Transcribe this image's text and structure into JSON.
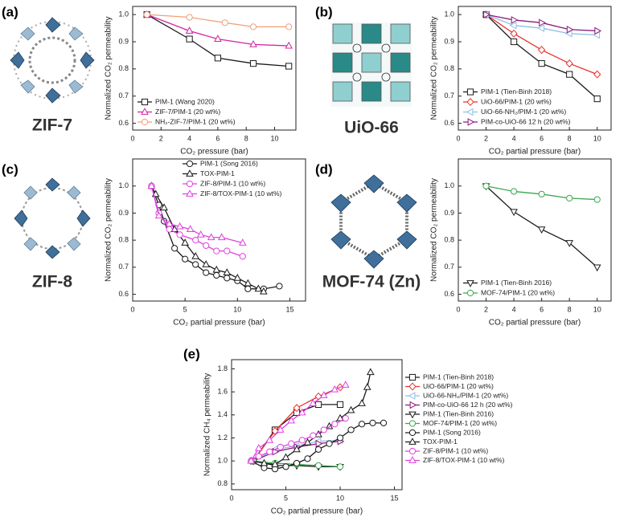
{
  "panels": [
    {
      "label": "(a)",
      "structure": "ZIF-7"
    },
    {
      "label": "(b)",
      "structure": "UiO-66"
    },
    {
      "label": "(c)",
      "structure": "ZIF-8"
    },
    {
      "label": "(d)",
      "structure": "MOF-74 (Zn)"
    },
    {
      "label": "(e)"
    }
  ],
  "chart_data": [
    {
      "type": "line",
      "xlabel": "CO₂ pressure (bar)",
      "ylabel": "Normalized CO₂ permeability",
      "xlim": [
        0,
        11.5
      ],
      "ylim": [
        0.575,
        1.03
      ],
      "xticks": [
        0,
        2,
        4,
        6,
        8,
        10
      ],
      "yticks": [
        0.6,
        0.7,
        0.8,
        0.9,
        {
          "value": 1,
          "label": "1.0"
        }
      ],
      "legend": "lower left",
      "series": [
        {
          "name": "PIM-1 (Wang 2020)",
          "color": "#1a1a1a",
          "marker": "square",
          "x": [
            1,
            4,
            6,
            8.5,
            11
          ],
          "values": [
            1.0,
            0.91,
            0.84,
            0.82,
            0.81
          ]
        },
        {
          "name": "ZIF-7/PIM-1 (20 wt%)",
          "color": "#d4249f",
          "marker": "triangle",
          "x": [
            1,
            4,
            6,
            8.5,
            11
          ],
          "values": [
            1.0,
            0.94,
            0.91,
            0.89,
            0.885
          ]
        },
        {
          "name": "NH₂-ZIF-7/PIM-1 (20 wt%)",
          "color": "#f0a07a",
          "marker": "circle",
          "x": [
            1,
            4,
            6.5,
            8.5,
            11
          ],
          "values": [
            1.0,
            0.99,
            0.97,
            0.955,
            0.955
          ]
        }
      ]
    },
    {
      "type": "line",
      "xlabel": "CO₂ partial pressure (bar)",
      "ylabel": "Normalized CO₂ permeability",
      "xlim": [
        0,
        11
      ],
      "ylim": [
        0.575,
        1.03
      ],
      "xticks": [
        0,
        2,
        4,
        6,
        8,
        10
      ],
      "yticks": [
        0.6,
        0.7,
        0.8,
        0.9,
        {
          "value": 1,
          "label": "1.0"
        }
      ],
      "legend": "lower left",
      "series": [
        {
          "name": "PIM-1 (Tien-Binh 2018)",
          "color": "#1a1a1a",
          "marker": "square",
          "x": [
            2,
            4,
            6,
            8,
            10
          ],
          "values": [
            1.0,
            0.9,
            0.82,
            0.78,
            0.69
          ]
        },
        {
          "name": "UiO-66/PIM-1 (20 wt%)",
          "color": "#e8312a",
          "marker": "diamond",
          "x": [
            2,
            4,
            6,
            8,
            10
          ],
          "values": [
            1.0,
            0.93,
            0.87,
            0.82,
            0.78
          ]
        },
        {
          "name": "UiO-66-NH₂/PIM-1 (20 wt%)",
          "color": "#8fbfe0",
          "marker": "triangle-left",
          "x": [
            2,
            4,
            6,
            8,
            10
          ],
          "values": [
            1.0,
            0.96,
            0.95,
            0.93,
            0.925
          ]
        },
        {
          "name": "PIM-co-UiO-66 12 h (20 wt%)",
          "color": "#8b1a7a",
          "marker": "triangle-right",
          "x": [
            2,
            4,
            6,
            8,
            10
          ],
          "values": [
            1.0,
            0.98,
            0.97,
            0.945,
            0.94
          ]
        }
      ]
    },
    {
      "type": "line",
      "xlabel": "CO₂ partial pressure (bar)",
      "ylabel": "Normalized CO₂ permeability",
      "xlim": [
        0,
        16.5
      ],
      "ylim": [
        0.575,
        1.1
      ],
      "xticks": [
        0,
        5,
        10,
        15
      ],
      "yticks": [
        0.6,
        0.7,
        0.8,
        0.9,
        {
          "value": 1,
          "label": "1.0"
        }
      ],
      "legend": "upper right",
      "series": [
        {
          "name": "PIM-1 (Song 2016)",
          "color": "#1a1a1a",
          "marker": "circle",
          "x": [
            1.8,
            2.5,
            3,
            4,
            5,
            6,
            7,
            8,
            9,
            10,
            11,
            12.5,
            14
          ],
          "values": [
            1.0,
            0.93,
            0.87,
            0.77,
            0.73,
            0.71,
            0.68,
            0.67,
            0.66,
            0.65,
            0.62,
            0.62,
            0.63
          ]
        },
        {
          "name": "TOX-PIM-1",
          "color": "#1a1a1a",
          "marker": "triangle",
          "x": [
            1.8,
            2.2,
            3,
            4,
            5,
            6,
            7,
            8,
            9,
            10,
            11,
            12,
            12.5
          ],
          "values": [
            1.0,
            0.97,
            0.92,
            0.84,
            0.79,
            0.74,
            0.71,
            0.69,
            0.68,
            0.66,
            0.64,
            0.62,
            0.61
          ]
        },
        {
          "name": "ZIF-8/PIM-1 (10 wt%)",
          "color": "#e040e0",
          "marker": "circle",
          "x": [
            1.8,
            2.5,
            3.5,
            4.5,
            6,
            7,
            8,
            9,
            10.5
          ],
          "values": [
            1.0,
            0.9,
            0.84,
            0.82,
            0.8,
            0.78,
            0.76,
            0.76,
            0.74
          ]
        },
        {
          "name": "ZIF-8/TOX-PIM-1 (10 wt%)",
          "color": "#e040e0",
          "marker": "triangle",
          "x": [
            1.8,
            2.5,
            3.5,
            4.5,
            5.5,
            6.5,
            7.5,
            8.5,
            10.5
          ],
          "values": [
            1.0,
            0.89,
            0.86,
            0.85,
            0.84,
            0.82,
            0.81,
            0.81,
            0.79
          ]
        }
      ]
    },
    {
      "type": "line",
      "xlabel": "CO₂ partial pressure (bar)",
      "ylabel": "Normalized CO₂ permeability",
      "xlim": [
        0,
        11
      ],
      "ylim": [
        0.575,
        1.1
      ],
      "xticks": [
        0,
        2,
        4,
        6,
        8,
        10
      ],
      "yticks": [
        0.6,
        0.7,
        0.8,
        0.9,
        {
          "value": 1,
          "label": "1.0"
        }
      ],
      "legend": "lower left",
      "series": [
        {
          "name": "PIM-1 (Tien-Binh 2016)",
          "color": "#1a1a1a",
          "marker": "triangle-down",
          "x": [
            2,
            4,
            6,
            8,
            10
          ],
          "values": [
            1.0,
            0.905,
            0.84,
            0.79,
            0.7
          ]
        },
        {
          "name": "MOF-74/PIM-1 (20 wt%)",
          "color": "#3aa64f",
          "marker": "circle",
          "x": [
            2,
            4,
            6,
            8,
            10
          ],
          "values": [
            1.0,
            0.98,
            0.97,
            0.955,
            0.95
          ]
        }
      ]
    },
    {
      "type": "line",
      "xlabel": "CO₂ partial pressure (bar)",
      "ylabel": "Normalized CH₄ permeability",
      "xlim": [
        0,
        15.7
      ],
      "ylim": [
        0.75,
        1.88
      ],
      "xticks": [
        0,
        5,
        10,
        15
      ],
      "yticks": [
        0.8,
        {
          "value": 1,
          "label": "1.0"
        },
        1.2,
        1.4,
        1.6,
        1.8
      ],
      "legend": "right",
      "series": [
        {
          "name": "PIM-1 (Tien-Binh 2018)",
          "color": "#1a1a1a",
          "marker": "square",
          "x": [
            2,
            4,
            6,
            8,
            10
          ],
          "values": [
            1.0,
            1.27,
            1.42,
            1.49,
            1.49
          ]
        },
        {
          "name": "UiO-66/PIM-1 (20 wt%)",
          "color": "#e8312a",
          "marker": "diamond",
          "x": [
            2,
            4,
            6,
            8,
            10
          ],
          "values": [
            1.0,
            1.26,
            1.46,
            1.56,
            1.64
          ]
        },
        {
          "name": "UiO-66-NH₂/PIM-1 (20 wt%)",
          "color": "#8fbfe0",
          "marker": "triangle-left",
          "x": [
            2,
            4,
            6,
            8,
            10
          ],
          "values": [
            1.0,
            1.1,
            1.13,
            1.17,
            1.18
          ]
        },
        {
          "name": "PIM-co-UiO-66 12 h (20 wt%)",
          "color": "#8b1a7a",
          "marker": "triangle-right",
          "x": [
            2,
            4,
            6,
            8,
            10
          ],
          "values": [
            1.0,
            1.08,
            1.12,
            1.15,
            1.17
          ]
        },
        {
          "name": "PIM-1 (Tien-Binh 2016)",
          "color": "#1a1a1a",
          "marker": "triangle-down",
          "x": [
            2,
            4,
            6,
            8,
            10
          ],
          "values": [
            1.0,
            0.96,
            0.96,
            0.95,
            0.95
          ]
        },
        {
          "name": "MOF-74/PIM-1 (20 wt%)",
          "color": "#3aa64f",
          "marker": "circle",
          "x": [
            2,
            4,
            6,
            8,
            10
          ],
          "values": [
            1.0,
            0.98,
            0.97,
            0.96,
            0.95
          ]
        },
        {
          "name": "PIM-1 (Song 2016)",
          "color": "#1a1a1a",
          "marker": "circle",
          "x": [
            1.8,
            3,
            4,
            5,
            6,
            7,
            8,
            9,
            10,
            11,
            12,
            13,
            14
          ],
          "values": [
            1.0,
            0.94,
            0.93,
            0.95,
            0.98,
            1.02,
            1.1,
            1.15,
            1.2,
            1.27,
            1.32,
            1.33,
            1.33
          ]
        },
        {
          "name": "TOX-PIM-1",
          "color": "#1a1a1a",
          "marker": "triangle",
          "x": [
            1.8,
            3,
            4,
            5,
            6,
            7,
            8,
            9,
            10,
            11,
            12,
            12.5,
            12.8
          ],
          "values": [
            1.0,
            0.98,
            0.97,
            1.03,
            1.1,
            1.16,
            1.23,
            1.3,
            1.37,
            1.44,
            1.5,
            1.64,
            1.77
          ]
        },
        {
          "name": "ZIF-8/PIM-1 (10 wt%)",
          "color": "#e040e0",
          "marker": "circle",
          "x": [
            1.8,
            2.5,
            3.5,
            4.5,
            5.5,
            6.5,
            7.5,
            8.5,
            9.5,
            10.5
          ],
          "values": [
            1.0,
            1.04,
            1.08,
            1.12,
            1.15,
            1.18,
            1.22,
            1.27,
            1.32,
            1.37
          ]
        },
        {
          "name": "ZIF-8/TOX-PIM-1 (10 wt%)",
          "color": "#e040e0",
          "marker": "triangle",
          "x": [
            1.8,
            2.5,
            3.5,
            4.5,
            5.5,
            6.5,
            7.5,
            8.5,
            9.5,
            10.5
          ],
          "values": [
            1.0,
            1.11,
            1.18,
            1.27,
            1.35,
            1.42,
            1.5,
            1.57,
            1.62,
            1.66
          ]
        }
      ]
    }
  ]
}
